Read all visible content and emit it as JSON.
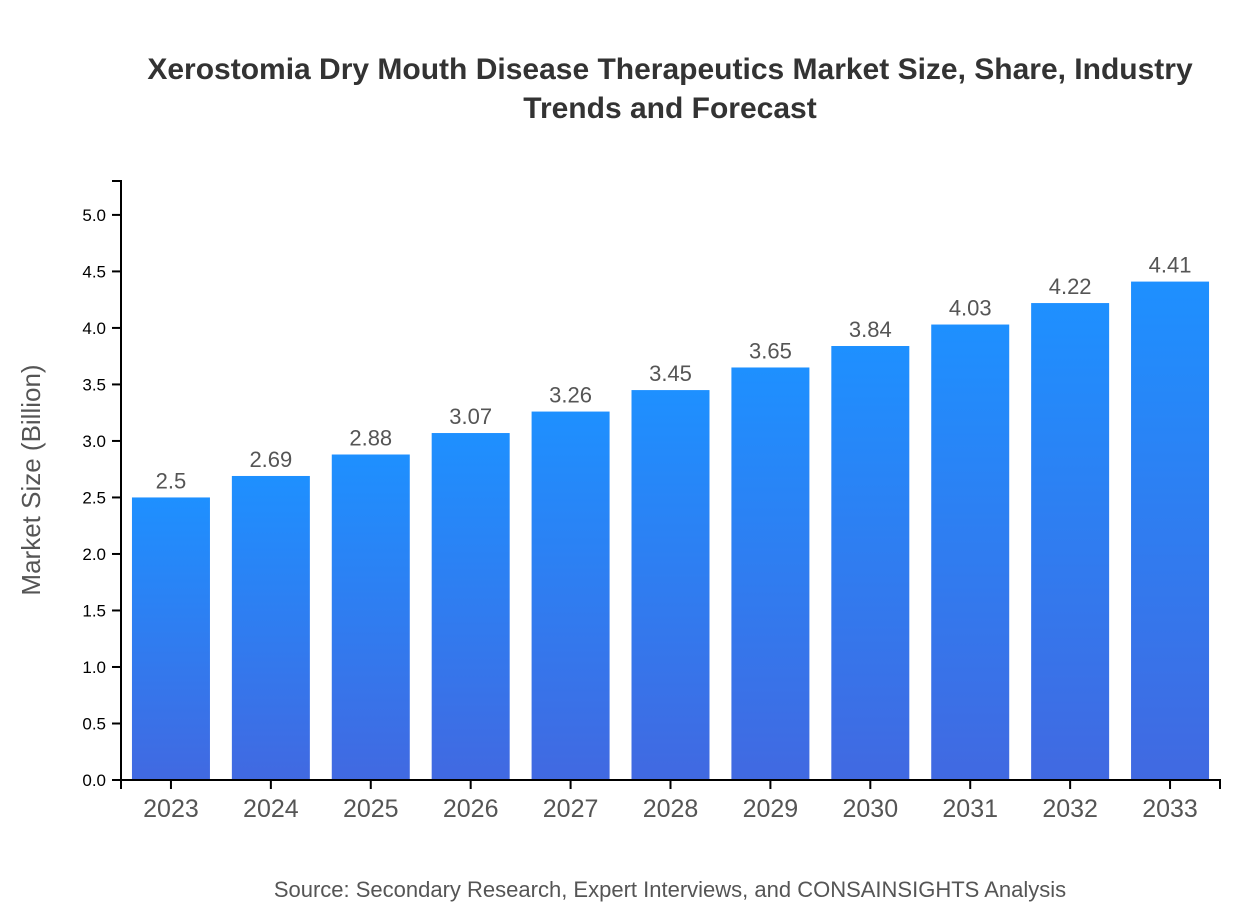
{
  "chart_data": {
    "type": "bar",
    "title": "Xerostomia Dry Mouth Disease Therapeutics Market Size, Share, Industry Trends and Forecast",
    "categories": [
      "2023",
      "2024",
      "2025",
      "2026",
      "2027",
      "2028",
      "2029",
      "2030",
      "2031",
      "2032",
      "2033"
    ],
    "values": [
      2.5,
      2.69,
      2.88,
      3.07,
      3.26,
      3.45,
      3.65,
      3.84,
      4.03,
      4.22,
      4.41
    ],
    "data_labels": [
      "2.5",
      "2.69",
      "2.88",
      "3.07",
      "3.26",
      "3.45",
      "3.65",
      "3.84",
      "4.03",
      "4.22",
      "4.41"
    ],
    "xlabel": "",
    "ylabel": "Market Size (Billion)",
    "ylim": [
      0,
      5.3
    ],
    "yticks": [
      "0.0",
      "0.5",
      "1.0",
      "1.5",
      "2.0",
      "2.5",
      "3.0",
      "3.5",
      "4.0",
      "4.5",
      "5.0"
    ],
    "grid": false,
    "colors": {
      "bar_top": "#1E90FF",
      "bar_bottom": "#4169E1"
    }
  },
  "source": "Source: Secondary Research, Expert Interviews, and CONSAINSIGHTS Analysis"
}
